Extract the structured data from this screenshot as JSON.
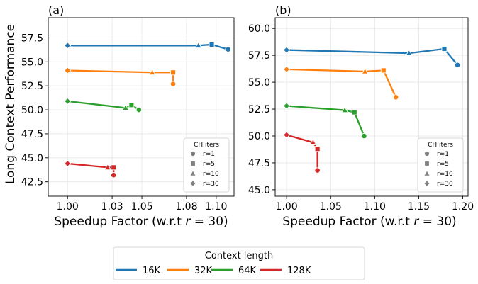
{
  "figure": {
    "ylabel": "Long Context Performance",
    "xlabel_prefix": "Speedup Factor (w.r.t ",
    "xlabel_math": "r",
    "xlabel_suffix": " = 30)"
  },
  "marker_legend": {
    "title": "CH iters",
    "entries": [
      {
        "label": "r=1",
        "marker": "circle"
      },
      {
        "label": "r=5",
        "marker": "square"
      },
      {
        "label": "r=10",
        "marker": "triangle"
      },
      {
        "label": "r=30",
        "marker": "diamond"
      }
    ]
  },
  "color_legend": {
    "title": "Context length",
    "entries": [
      {
        "label": "16K",
        "color": "#1f77b4"
      },
      {
        "label": "32K",
        "color": "#ff7f0e"
      },
      {
        "label": "64K",
        "color": "#2ca02c"
      },
      {
        "label": "128K",
        "color": "#d62728"
      }
    ]
  },
  "chart_data": [
    {
      "type": "line",
      "panel_label": "(a)",
      "xlim": [
        0.987,
        1.112
      ],
      "ylim": [
        41.0,
        59.6
      ],
      "xticks": [
        1.0,
        1.03,
        1.05,
        1.08,
        1.1
      ],
      "xtick_labels": [
        "1.00",
        "1.03",
        "1.05",
        "1.08",
        "1.10"
      ],
      "yticks": [
        42.5,
        45.0,
        47.5,
        50.0,
        52.5,
        55.0,
        57.5
      ],
      "ytick_labels": [
        "42.5",
        "45.0",
        "47.5",
        "50.0",
        "52.5",
        "55.0",
        "57.5"
      ],
      "grid": true,
      "legend_position": "lower right",
      "series": [
        {
          "name": "16K",
          "color": "#1f77b4",
          "points": [
            {
              "r": 30,
              "marker": "diamond",
              "x": 1.0,
              "y": 56.7
            },
            {
              "r": 10,
              "marker": "triangle",
              "x": 1.088,
              "y": 56.7
            },
            {
              "r": 5,
              "marker": "square",
              "x": 1.097,
              "y": 56.8
            },
            {
              "r": 1,
              "marker": "circle",
              "x": 1.108,
              "y": 56.3
            }
          ]
        },
        {
          "name": "32K",
          "color": "#ff7f0e",
          "points": [
            {
              "r": 30,
              "marker": "diamond",
              "x": 1.0,
              "y": 54.1
            },
            {
              "r": 10,
              "marker": "triangle",
              "x": 1.057,
              "y": 53.9
            },
            {
              "r": 5,
              "marker": "square",
              "x": 1.071,
              "y": 53.9
            },
            {
              "r": 1,
              "marker": "circle",
              "x": 1.071,
              "y": 52.7
            }
          ]
        },
        {
          "name": "64K",
          "color": "#2ca02c",
          "points": [
            {
              "r": 30,
              "marker": "diamond",
              "x": 1.0,
              "y": 50.9
            },
            {
              "r": 10,
              "marker": "triangle",
              "x": 1.039,
              "y": 50.2
            },
            {
              "r": 5,
              "marker": "square",
              "x": 1.043,
              "y": 50.5
            },
            {
              "r": 1,
              "marker": "circle",
              "x": 1.048,
              "y": 50.0
            }
          ]
        },
        {
          "name": "128K",
          "color": "#d62728",
          "points": [
            {
              "r": 30,
              "marker": "diamond",
              "x": 1.0,
              "y": 44.4
            },
            {
              "r": 10,
              "marker": "triangle",
              "x": 1.027,
              "y": 44.0
            },
            {
              "r": 5,
              "marker": "square",
              "x": 1.031,
              "y": 44.0
            },
            {
              "r": 1,
              "marker": "circle",
              "x": 1.031,
              "y": 43.2
            }
          ]
        }
      ]
    },
    {
      "type": "line",
      "panel_label": "(b)",
      "xlim": [
        0.987,
        1.206
      ],
      "ylim": [
        44.4,
        61.0
      ],
      "xticks": [
        1.0,
        1.05,
        1.1,
        1.15,
        1.2
      ],
      "xtick_labels": [
        "1.00",
        "1.05",
        "1.10",
        "1.15",
        "1.20"
      ],
      "yticks": [
        45.0,
        47.5,
        50.0,
        52.5,
        55.0,
        57.5,
        60.0
      ],
      "ytick_labels": [
        "45.0",
        "47.5",
        "50.0",
        "52.5",
        "55.0",
        "57.5",
        "60.0"
      ],
      "grid": true,
      "legend_position": "lower right",
      "series": [
        {
          "name": "16K",
          "color": "#1f77b4",
          "points": [
            {
              "r": 30,
              "marker": "diamond",
              "x": 1.0,
              "y": 58.0
            },
            {
              "r": 10,
              "marker": "triangle",
              "x": 1.139,
              "y": 57.7
            },
            {
              "r": 5,
              "marker": "square",
              "x": 1.179,
              "y": 58.1
            },
            {
              "r": 1,
              "marker": "circle",
              "x": 1.194,
              "y": 56.6
            }
          ]
        },
        {
          "name": "32K",
          "color": "#ff7f0e",
          "points": [
            {
              "r": 30,
              "marker": "diamond",
              "x": 1.0,
              "y": 56.2
            },
            {
              "r": 10,
              "marker": "triangle",
              "x": 1.089,
              "y": 56.0
            },
            {
              "r": 5,
              "marker": "square",
              "x": 1.11,
              "y": 56.1
            },
            {
              "r": 1,
              "marker": "circle",
              "x": 1.124,
              "y": 53.6
            }
          ]
        },
        {
          "name": "64K",
          "color": "#2ca02c",
          "points": [
            {
              "r": 30,
              "marker": "diamond",
              "x": 1.0,
              "y": 52.8
            },
            {
              "r": 10,
              "marker": "triangle",
              "x": 1.066,
              "y": 52.4
            },
            {
              "r": 5,
              "marker": "square",
              "x": 1.077,
              "y": 52.2
            },
            {
              "r": 1,
              "marker": "circle",
              "x": 1.088,
              "y": 50.0
            }
          ]
        },
        {
          "name": "128K",
          "color": "#d62728",
          "points": [
            {
              "r": 30,
              "marker": "diamond",
              "x": 1.0,
              "y": 50.1
            },
            {
              "r": 10,
              "marker": "triangle",
              "x": 1.03,
              "y": 49.4
            },
            {
              "r": 5,
              "marker": "square",
              "x": 1.035,
              "y": 48.8
            },
            {
              "r": 1,
              "marker": "circle",
              "x": 1.035,
              "y": 46.8
            }
          ]
        }
      ]
    }
  ]
}
